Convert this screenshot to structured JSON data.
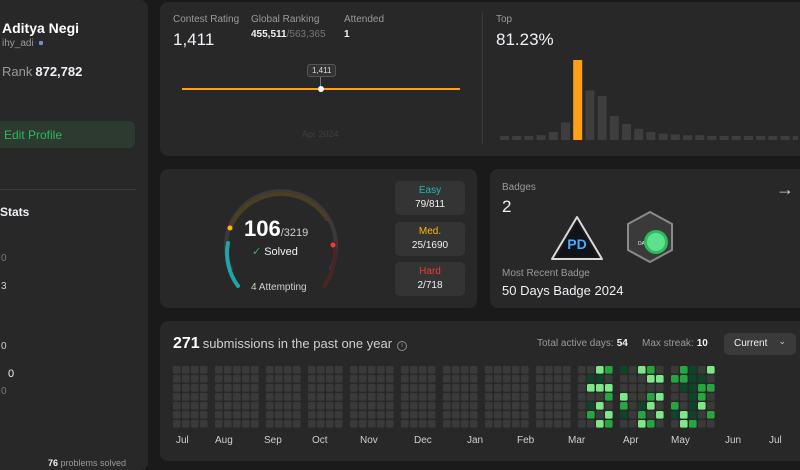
{
  "profile": {
    "name": "Aditya Negi",
    "username": "ihy_adi",
    "rank_label": "Rank",
    "rank_value": "872,782",
    "edit_label": "Edit Profile",
    "stats_title": "Stats",
    "partial_rows": [
      "0",
      "3",
      "0",
      "0"
    ],
    "partial_value": "0",
    "solved_count": "76",
    "solved_suffix": "problems solved"
  },
  "contest": {
    "rating_label": "Contest Rating",
    "rating_value": "1,411",
    "global_label": "Global Ranking",
    "global_value": "455,511",
    "global_total": "/563,365",
    "attended_label": "Attended",
    "attended_value": "1",
    "tooltip": "1,411",
    "date_label": "Apr 2024",
    "top_label": "Top",
    "top_value": "81.23%",
    "histogram_levels": [
      0.05,
      0.05,
      0.05,
      0.06,
      0.1,
      0.22,
      1.0,
      0.62,
      0.55,
      0.3,
      0.2,
      0.14,
      0.1,
      0.08,
      0.07,
      0.06,
      0.06,
      0.05,
      0.05,
      0.05,
      0.05,
      0.05,
      0.05,
      0.05,
      0.05
    ],
    "histogram_highlight": 6,
    "accent": "#ffa116"
  },
  "problems": {
    "solved": "106",
    "total": "/3219",
    "solved_label": "Solved",
    "attempting": "4 Attempting",
    "easy_label": "Easy",
    "easy_value": "79/811",
    "medium_label": "Med.",
    "medium_value": "25/1690",
    "hard_label": "Hard",
    "hard_value": "2/718",
    "colors": {
      "easy": "#1cbaba",
      "medium": "#ffb700",
      "hard": "#f63737"
    }
  },
  "badges": {
    "title": "Badges",
    "count": "2",
    "recent_label": "Most Recent Badge",
    "recent_name": "50 Days Badge 2024",
    "badge1_text": "PD",
    "badge2_text": "DAYS"
  },
  "submissions": {
    "count": "271",
    "label": "submissions in the past one year",
    "active_label": "Total active days:",
    "active_value": "54",
    "streak_label": "Max streak:",
    "streak_value": "10",
    "selector": "Current",
    "months": [
      "Jul",
      "Aug",
      "Sep",
      "Oct",
      "Nov",
      "Dec",
      "Jan",
      "Feb",
      "Mar",
      "Apr",
      "May",
      "Jun",
      "Jul"
    ]
  }
}
